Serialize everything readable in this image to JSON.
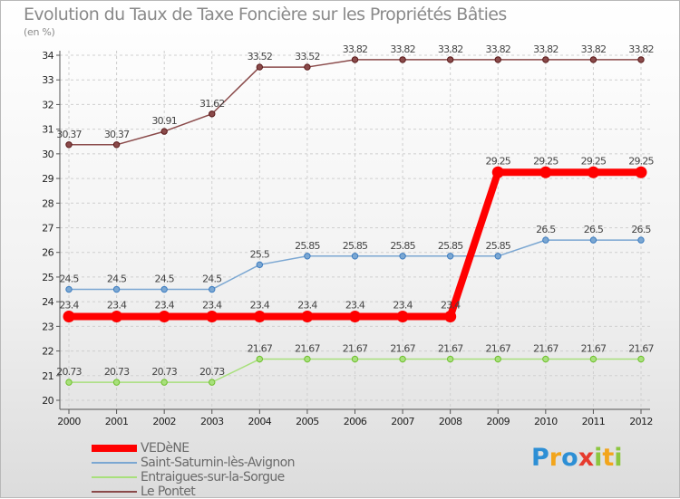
{
  "title": "Evolution du Taux de Taxe Foncière sur les Propriétés Bâties",
  "unit_label": "(en %)",
  "logo": {
    "text": "Proxiti",
    "letters": [
      {
        "ch": "P",
        "color": "#2d8fd5"
      },
      {
        "ch": "r",
        "color": "#f2a51c"
      },
      {
        "ch": "o",
        "color": "#2d8fd5"
      },
      {
        "ch": "x",
        "color": "#e63b2e"
      },
      {
        "ch": "i",
        "color": "#8dc63f"
      },
      {
        "ch": "t",
        "color": "#f2a51c"
      },
      {
        "ch": "i",
        "color": "#8dc63f"
      }
    ]
  },
  "chart_data": {
    "type": "line",
    "title": "Evolution du Taux de Taxe Foncière sur les Propriétés Bâties",
    "ylabel": "(en %)",
    "xlabel": "",
    "ylim": [
      20,
      34
    ],
    "yticks": [
      "20",
      "21",
      "22",
      "23",
      "24",
      "25",
      "26",
      "27",
      "28",
      "29",
      "30",
      "31",
      "32",
      "33",
      "34"
    ],
    "categories": [
      "2000",
      "2001",
      "2002",
      "2003",
      "2004",
      "2005",
      "2006",
      "2007",
      "2008",
      "2009",
      "2010",
      "2011",
      "2012"
    ],
    "legend_position": "bottom-left",
    "grid": "dashed",
    "series": [
      {
        "name": "VEDèNE",
        "color": "#ff0000",
        "style": "thick",
        "values": [
          23.4,
          23.4,
          23.4,
          23.4,
          23.4,
          23.4,
          23.4,
          23.4,
          23.4,
          29.25,
          29.25,
          29.25,
          29.25
        ],
        "labels": [
          "23.4",
          "23.4",
          "23.4",
          "23.4",
          "23.4",
          "23.4",
          "23.4",
          "23.4",
          "23.4",
          "29.25",
          "29.25",
          "29.25",
          "29.25"
        ]
      },
      {
        "name": "Saint-Saturnin-lès-Avignon",
        "color": "#7ba7d2",
        "marker": "#3c7cc0",
        "values": [
          24.5,
          24.5,
          24.5,
          24.5,
          25.5,
          25.85,
          25.85,
          25.85,
          25.85,
          25.85,
          26.5,
          26.5,
          26.5
        ],
        "labels": [
          "24.5",
          "24.5",
          "24.5",
          "24.5",
          "25.5",
          "25.85",
          "25.85",
          "25.85",
          "25.85",
          "25.85",
          "26.5",
          "26.5",
          "26.5"
        ]
      },
      {
        "name": "Entraigues-sur-la-Sorgue",
        "color": "#a8e07c",
        "marker": "#6fc02e",
        "values": [
          20.73,
          20.73,
          20.73,
          20.73,
          21.67,
          21.67,
          21.67,
          21.67,
          21.67,
          21.67,
          21.67,
          21.67,
          21.67
        ],
        "labels": [
          "20.73",
          "20.73",
          "20.73",
          "20.73",
          "21.67",
          "21.67",
          "21.67",
          "21.67",
          "21.67",
          "21.67",
          "21.67",
          "21.67",
          "21.67"
        ]
      },
      {
        "name": "Le Pontet",
        "color": "#8a4a4a",
        "marker": "#5a1a1a",
        "values": [
          30.37,
          30.37,
          30.91,
          31.62,
          33.52,
          33.52,
          33.82,
          33.82,
          33.82,
          33.82,
          33.82,
          33.82,
          33.82
        ],
        "labels": [
          "30.37",
          "30.37",
          "30.91",
          "31.62",
          "33.52",
          "33.52",
          "33.82",
          "33.82",
          "33.82",
          "33.82",
          "33.82",
          "33.82",
          "33.82"
        ]
      }
    ]
  }
}
